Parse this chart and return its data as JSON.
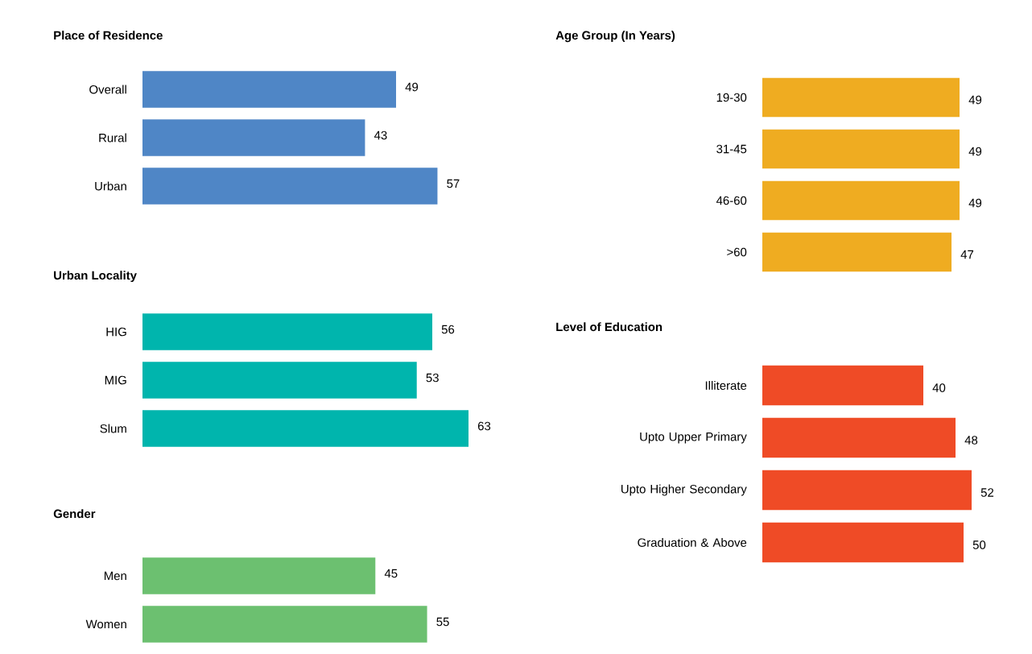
{
  "chart_data": [
    {
      "type": "bar",
      "orientation": "horizontal",
      "title": "Place of Residence",
      "categories": [
        "Overall",
        "Rural",
        "Urban"
      ],
      "values": [
        49,
        43,
        57
      ],
      "color": "#4f86c6",
      "data_labels": true
    },
    {
      "type": "bar",
      "orientation": "horizontal",
      "title": "Urban Locality",
      "categories": [
        "HIG",
        "MIG",
        "Slum"
      ],
      "values": [
        56,
        53,
        63
      ],
      "color": "#00b5ad",
      "data_labels": true
    },
    {
      "type": "bar",
      "orientation": "horizontal",
      "title": "Gender",
      "categories": [
        "Men",
        "Women"
      ],
      "values": [
        45,
        55
      ],
      "color": "#6cc070",
      "data_labels": true
    },
    {
      "type": "bar",
      "orientation": "horizontal",
      "title": "Age Group (In Years)",
      "categories": [
        "19-30",
        "31-45",
        "46-60",
        ">60"
      ],
      "values": [
        49,
        49,
        49,
        47
      ],
      "color": "#efac21",
      "data_labels": true
    },
    {
      "type": "bar",
      "orientation": "horizontal",
      "title": "Level of Education",
      "categories": [
        "Illiterate",
        "Upto Upper Primary",
        "Upto Higher Secondary",
        "Graduation & Above"
      ],
      "values": [
        40,
        48,
        52,
        50
      ],
      "color": "#ef4b26",
      "data_labels": true
    }
  ]
}
